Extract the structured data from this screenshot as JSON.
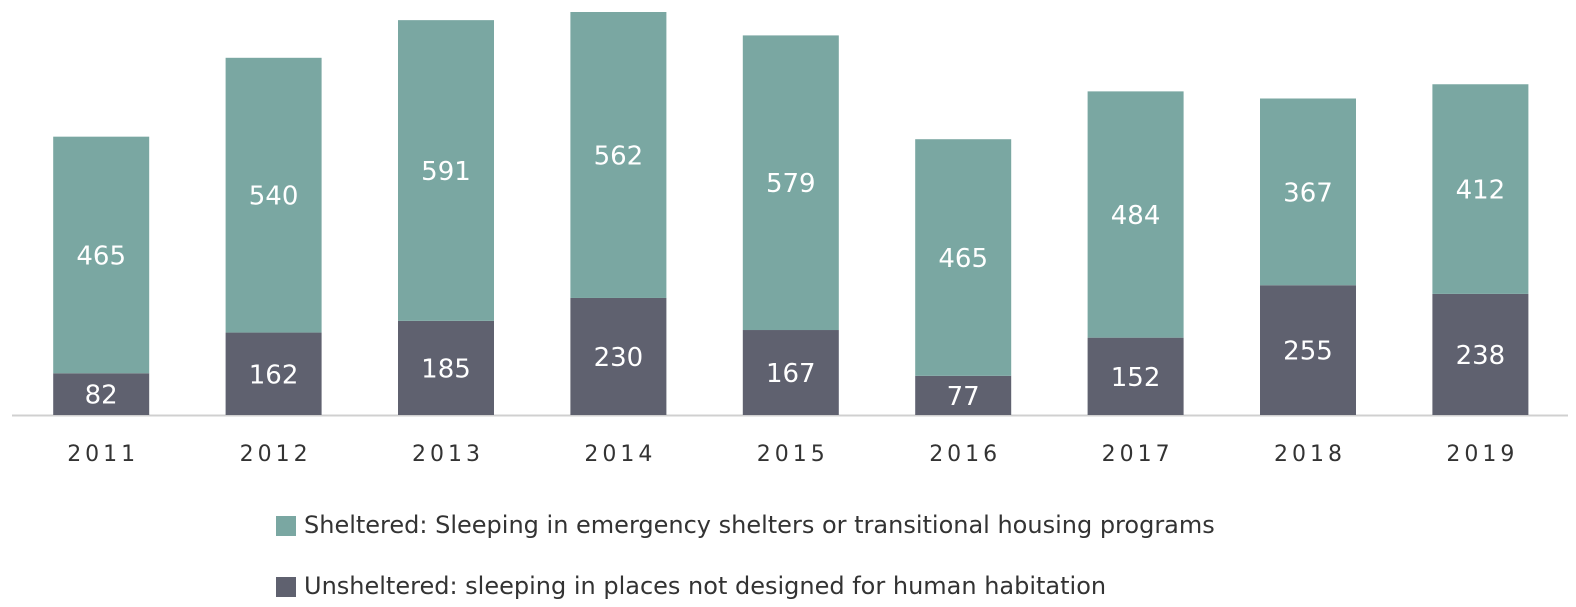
{
  "chart_data": {
    "type": "stacked_bar",
    "categories": [
      "2011",
      "2012",
      "2013",
      "2014",
      "2015",
      "2016",
      "2017",
      "2018",
      "2019"
    ],
    "series": [
      {
        "name": "Sheltered: Sleeping in emergency shelters or transitional housing programs",
        "color": "#7aa7a2",
        "values": [
          465,
          540,
          591,
          562,
          579,
          465,
          484,
          367,
          412
        ]
      },
      {
        "name": "Unsheltered: sleeping in places not designed for human habitation",
        "color": "#5f616f",
        "values": [
          82,
          162,
          185,
          230,
          167,
          77,
          152,
          255,
          238
        ]
      }
    ]
  }
}
